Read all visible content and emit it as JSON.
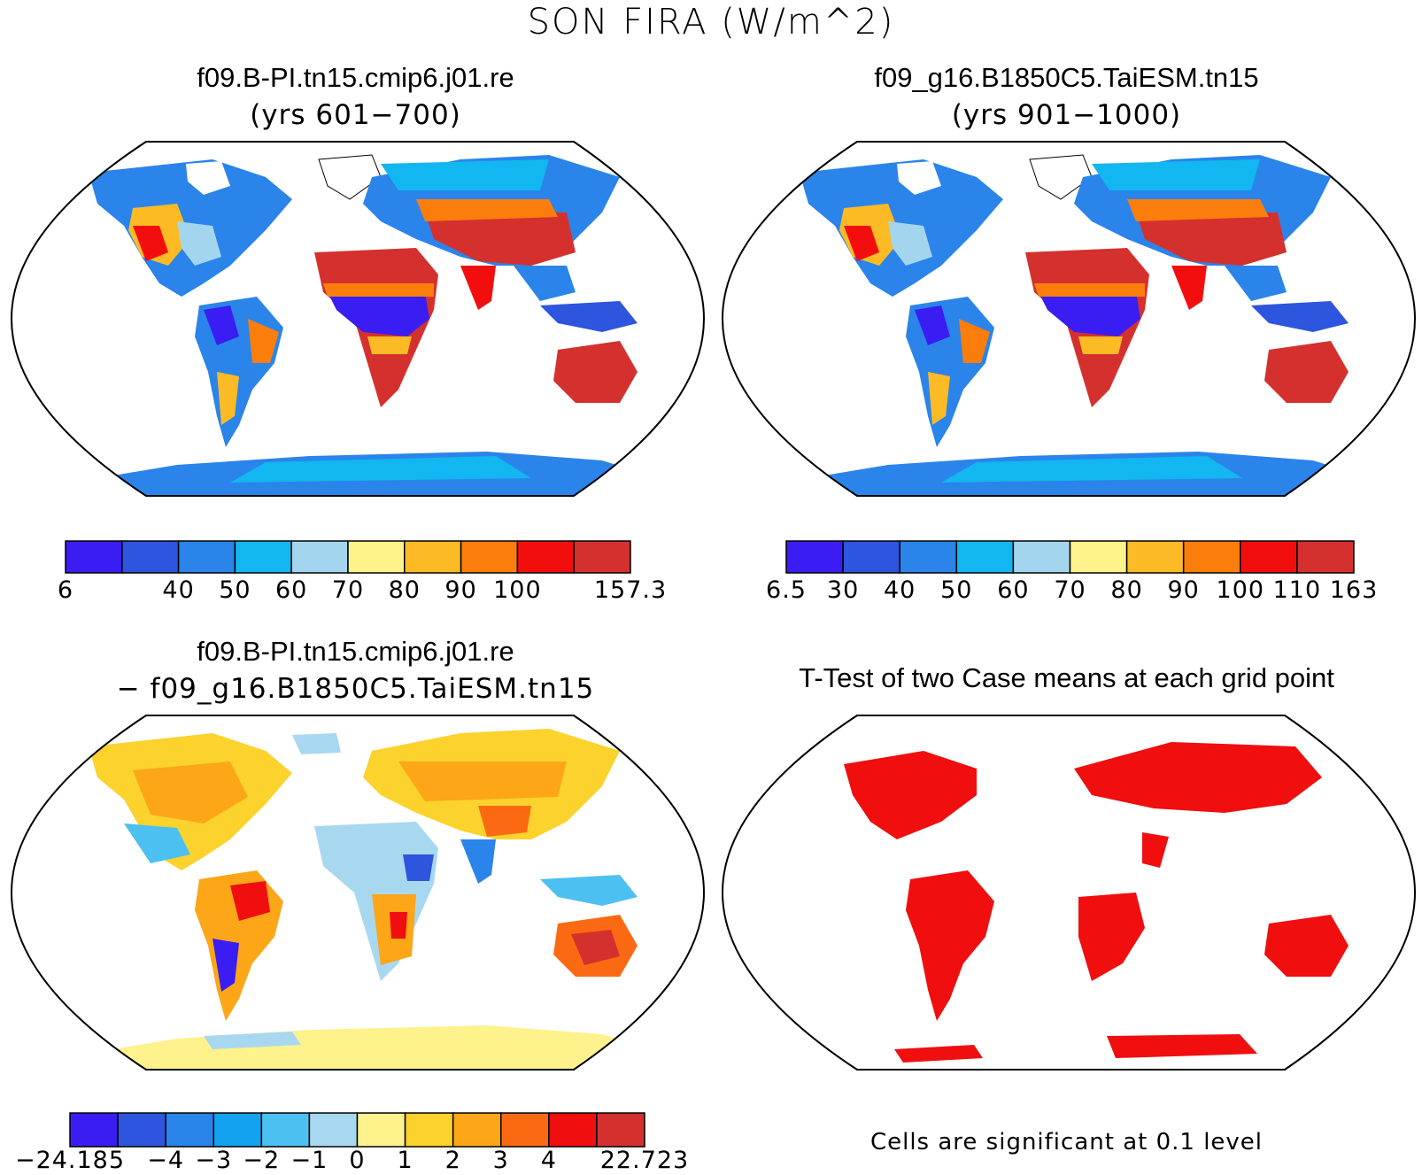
{
  "figure": {
    "title": "SON FIRA (W/m^2)"
  },
  "panels": {
    "top_left": {
      "title": "f09.B-PI.tn15.cmip6.j01.re",
      "subtitle": "(yrs 601−700)",
      "colorbar": {
        "colors": [
          "#3a1df2",
          "#2e55dd",
          "#2a84ea",
          "#12b6f0",
          "#a3d6ee",
          "#fdf28c",
          "#fcbb24",
          "#fb7e0d",
          "#f30e0e",
          "#d4312e"
        ],
        "labels": [
          "6",
          "40",
          "50",
          "60",
          "70",
          "80",
          "90",
          "100",
          "157.3"
        ],
        "label_boundaries": [
          0,
          2,
          3,
          4,
          5,
          6,
          7,
          8,
          10
        ]
      }
    },
    "top_right": {
      "title": "f09_g16.B1850C5.TaiESM.tn15",
      "subtitle": "(yrs 901−1000)",
      "colorbar": {
        "colors": [
          "#3a1df2",
          "#2e55dd",
          "#2a84ea",
          "#12b6f0",
          "#a3d6ee",
          "#fdf28c",
          "#fcbb24",
          "#fb7e0d",
          "#f30e0e",
          "#d4312e"
        ],
        "labels": [
          "6.5",
          "30",
          "40",
          "50",
          "60",
          "70",
          "80",
          "90",
          "100",
          "110",
          "163"
        ],
        "label_boundaries": [
          0,
          1,
          2,
          3,
          4,
          5,
          6,
          7,
          8,
          9,
          10
        ]
      }
    },
    "bottom_left": {
      "title": "f09.B-PI.tn15.cmip6.j01.re",
      "subtitle": "− f09_g16.B1850C5.TaiESM.tn15",
      "colorbar": {
        "colors": [
          "#3a1df2",
          "#2e55dd",
          "#2a84ea",
          "#12a2f0",
          "#4cc0f0",
          "#a8d8f0",
          "#fdf28c",
          "#fcd22c",
          "#fca618",
          "#fb6a12",
          "#f00e0e",
          "#d4312e"
        ],
        "labels": [
          "−24.185",
          "−4",
          "−3",
          "−2",
          "−1",
          "0",
          "1",
          "2",
          "3",
          "4",
          "22.723"
        ],
        "label_boundaries": [
          0,
          2,
          3,
          4,
          5,
          6,
          7,
          8,
          9,
          10,
          12
        ]
      }
    },
    "bottom_right": {
      "title": "T-Test of two Case means at each grid point",
      "note": "Cells are significant at 0.1 level"
    }
  }
}
